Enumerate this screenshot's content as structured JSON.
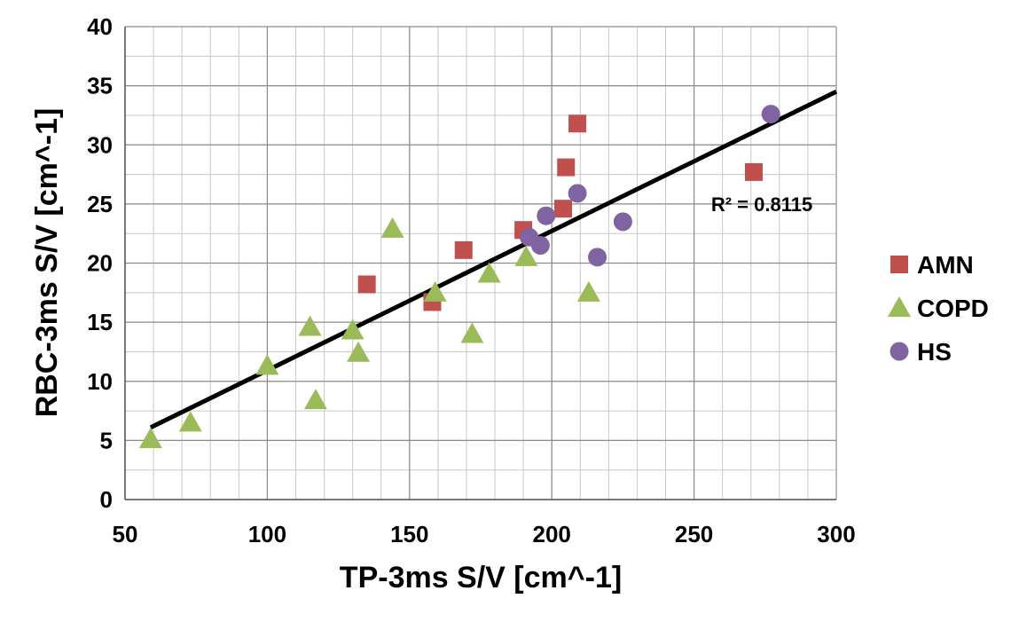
{
  "chart_data": {
    "type": "scatter",
    "title": "",
    "xlabel": "TP-3ms S/V [cm^-1]",
    "ylabel": "RBC-3ms S/V [cm^-1]",
    "xlim": [
      50,
      300
    ],
    "ylim": [
      0,
      40
    ],
    "xticks": [
      50,
      100,
      150,
      200,
      250,
      300
    ],
    "yticks": [
      0,
      5,
      10,
      15,
      20,
      25,
      30,
      35,
      40
    ],
    "x_minor_step": 10,
    "y_minor_step": 2.5,
    "grid": true,
    "legend_position": "right",
    "series": [
      {
        "name": "AMN",
        "marker": "square",
        "color": "#c0504d",
        "x": [
          135,
          158,
          169,
          190,
          204,
          205,
          209,
          271
        ],
        "y": [
          18.2,
          16.7,
          21.1,
          22.8,
          24.6,
          28.1,
          31.8,
          27.7
        ]
      },
      {
        "name": "COPD",
        "marker": "triangle",
        "color": "#9bbb59",
        "x": [
          59,
          73,
          100,
          115,
          117,
          130,
          132,
          144,
          159,
          172,
          178,
          191,
          213
        ],
        "y": [
          5.1,
          6.5,
          11.3,
          14.6,
          8.4,
          14.3,
          12.4,
          22.9,
          17.5,
          14.0,
          19.1,
          20.5,
          17.5
        ]
      },
      {
        "name": "HS",
        "marker": "circle",
        "color": "#8064a2",
        "x": [
          192,
          196,
          198,
          209,
          216,
          225,
          277
        ],
        "y": [
          22.2,
          21.5,
          24.0,
          25.9,
          20.5,
          23.5,
          32.6
        ]
      }
    ],
    "trendline": {
      "x": [
        59,
        300
      ],
      "y": [
        6.1,
        34.5
      ],
      "color": "#000000"
    },
    "annotations": [
      {
        "text": "R² = 0.8115",
        "x": 256,
        "y": 24.4
      }
    ]
  }
}
